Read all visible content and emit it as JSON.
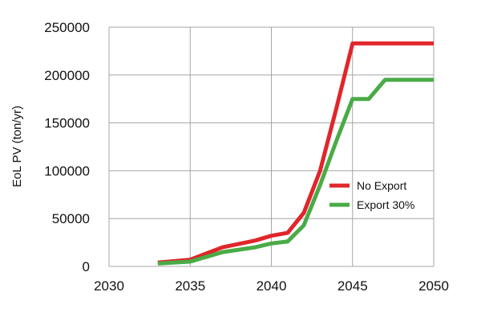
{
  "chart_data": {
    "type": "line",
    "title": "",
    "xlabel": "",
    "ylabel": "EoL PV (ton/yr)",
    "xlim": [
      2030,
      2050
    ],
    "ylim": [
      0,
      250000
    ],
    "xticks": [
      2030,
      2035,
      2040,
      2045,
      2050
    ],
    "yticks": [
      0,
      50000,
      100000,
      150000,
      200000,
      250000
    ],
    "grid": true,
    "legend_position": "center-right",
    "series": [
      {
        "name": "No Export",
        "color": "#e0262b",
        "x": [
          2033,
          2035,
          2037,
          2039,
          2040,
          2041,
          2042,
          2043,
          2044,
          2045,
          2046,
          2047,
          2048,
          2049,
          2050
        ],
        "values": [
          4000,
          7000,
          20000,
          27000,
          32000,
          35000,
          56000,
          100000,
          165000,
          233000,
          233000,
          233000,
          233000,
          233000,
          233000
        ]
      },
      {
        "name": "Export 30%",
        "color": "#4aab46",
        "x": [
          2033,
          2035,
          2037,
          2039,
          2040,
          2041,
          2042,
          2043,
          2044,
          2045,
          2046,
          2047,
          2048,
          2049,
          2050
        ],
        "values": [
          3000,
          5000,
          15000,
          20000,
          24000,
          26000,
          43000,
          85000,
          131000,
          175000,
          175000,
          195000,
          195000,
          195000,
          195000
        ]
      }
    ]
  }
}
